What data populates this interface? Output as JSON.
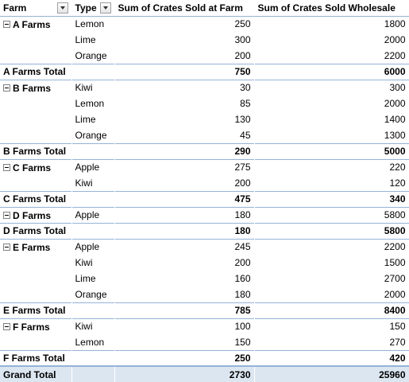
{
  "headers": {
    "farm": "Farm",
    "type": "Type",
    "sold_at_farm": "Sum of Crates Sold at Farm",
    "sold_wholesale": "Sum of Crates Sold Wholesale"
  },
  "groups": [
    {
      "farm": "A Farms",
      "rows": [
        {
          "type": "Lemon",
          "farm": "250",
          "wholesale": "1800"
        },
        {
          "type": "Lime",
          "farm": "300",
          "wholesale": "2000"
        },
        {
          "type": "Orange",
          "farm": "200",
          "wholesale": "2200"
        }
      ],
      "total_label": "A Farms Total",
      "total_farm": "750",
      "total_wholesale": "6000"
    },
    {
      "farm": "B Farms",
      "rows": [
        {
          "type": "Kiwi",
          "farm": "30",
          "wholesale": "300"
        },
        {
          "type": "Lemon",
          "farm": "85",
          "wholesale": "2000"
        },
        {
          "type": "Lime",
          "farm": "130",
          "wholesale": "1400"
        },
        {
          "type": "Orange",
          "farm": "45",
          "wholesale": "1300"
        }
      ],
      "total_label": "B Farms Total",
      "total_farm": "290",
      "total_wholesale": "5000"
    },
    {
      "farm": "C Farms",
      "rows": [
        {
          "type": "Apple",
          "farm": "275",
          "wholesale": "220"
        },
        {
          "type": "Kiwi",
          "farm": "200",
          "wholesale": "120"
        }
      ],
      "total_label": "C Farms Total",
      "total_farm": "475",
      "total_wholesale": "340"
    },
    {
      "farm": "D Farms",
      "rows": [
        {
          "type": "Apple",
          "farm": "180",
          "wholesale": "5800"
        }
      ],
      "total_label": "D Farms Total",
      "total_farm": "180",
      "total_wholesale": "5800"
    },
    {
      "farm": "E Farms",
      "rows": [
        {
          "type": "Apple",
          "farm": "245",
          "wholesale": "2200"
        },
        {
          "type": "Kiwi",
          "farm": "200",
          "wholesale": "1500"
        },
        {
          "type": "Lime",
          "farm": "160",
          "wholesale": "2700"
        },
        {
          "type": "Orange",
          "farm": "180",
          "wholesale": "2000"
        }
      ],
      "total_label": "E Farms Total",
      "total_farm": "785",
      "total_wholesale": "8400"
    },
    {
      "farm": "F Farms",
      "rows": [
        {
          "type": "Kiwi",
          "farm": "100",
          "wholesale": "150"
        },
        {
          "type": "Lemon",
          "farm": "150",
          "wholesale": "270"
        }
      ],
      "total_label": "F Farms Total",
      "total_farm": "250",
      "total_wholesale": "420"
    }
  ],
  "grand_total": {
    "label": "Grand Total",
    "farm": "2730",
    "wholesale": "25960"
  },
  "colors": {
    "header_border": "#95b3d7",
    "grand_total_bg": "#dce6f1"
  },
  "icons": {
    "filter": "dropdown-arrow-icon",
    "collapse": "collapse-minus-icon"
  }
}
